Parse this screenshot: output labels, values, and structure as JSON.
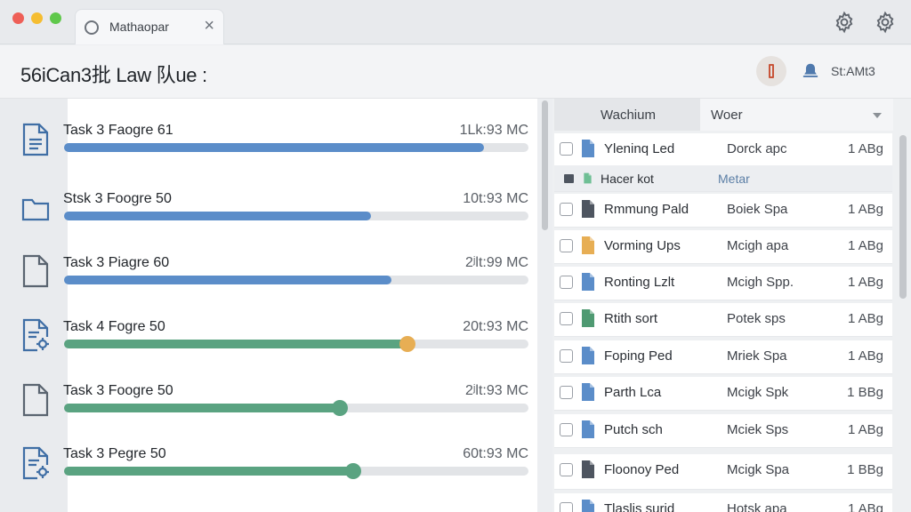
{
  "window": {
    "tab_title": "Mathaopar",
    "tab_close": "×"
  },
  "header": {
    "title": "56iCan3批 Law 队ue :",
    "status": "St:AMt3"
  },
  "tasks": [
    {
      "name": "Task 3 Faogre 61",
      "size": "1Lk:93 MC",
      "progress": 0.905,
      "color": "#5b8dc9",
      "knob": false,
      "icon": "document-icon"
    },
    {
      "name": "Stsk 3 Foogre 50",
      "size": "10t:93 MC",
      "progress": 0.66,
      "color": "#5b8dc9",
      "knob": false,
      "icon": "folder-icon"
    },
    {
      "name": "Task 3 Piаgre 60",
      "size": "2ʲlt:99 MC",
      "progress": 0.705,
      "color": "#5b8dc9",
      "knob": false,
      "icon": "file-icon"
    },
    {
      "name": "Task 4 Fogre 50",
      "size": "20t:93 MC",
      "progress": 0.74,
      "color": "#5aa381",
      "knob": true,
      "knob_color": "#e7ae54",
      "icon": "document-settings-icon"
    },
    {
      "name": "Task 3 Foogre 50",
      "size": "2ʲlt:93 MC",
      "progress": 0.594,
      "color": "#5aa381",
      "knob": true,
      "knob_color": "#5aa381",
      "icon": "file-icon"
    },
    {
      "name": "Task 3 Pegre 50",
      "size": "60t:93 MC",
      "progress": 0.622,
      "color": "#5aa381",
      "knob": true,
      "knob_color": "#5aa381",
      "icon": "document-settings-icon"
    }
  ],
  "files_panel": {
    "tab_a": "Wachium",
    "tab_b": "Woer",
    "rows": [
      {
        "type": "file",
        "name": "Yleninq Led",
        "kind": "Dorck apc",
        "size": "1 ABg",
        "icon_color": "#5b8dc9"
      },
      {
        "type": "group",
        "name": "Hacer kot",
        "kind": "Metar",
        "icon_color": "#6fbf95"
      },
      {
        "type": "file",
        "name": "Rmmung Pald",
        "kind": "Boiek Spa",
        "size": "1 ABg",
        "icon_color": "#4e5560"
      },
      {
        "type": "file",
        "name": "Vorming Ups",
        "kind": "Mcigh apa",
        "size": "1 ABg",
        "icon_color": "#e7ae54"
      },
      {
        "type": "file",
        "name": "Ronting Lzlt",
        "kind": "Mcigh Spp.",
        "size": "1 ABg",
        "icon_color": "#5b8dc9"
      },
      {
        "type": "file",
        "name": "Rtith sort",
        "kind": "Potek sps",
        "size": "1 ABg",
        "icon_color": "#4f9a72"
      },
      {
        "type": "file",
        "name": "Foping Ped",
        "kind": "Mriek Spa",
        "size": "1 ABg",
        "icon_color": "#5b8dc9"
      },
      {
        "type": "file",
        "name": "Parth Lca",
        "kind": "Mcigk Spk",
        "size": "1 BBg",
        "icon_color": "#5b8dc9"
      },
      {
        "type": "file",
        "name": "Putch sch",
        "kind": "Mciek Sps",
        "size": "1 ABg",
        "icon_color": "#5b8dc9"
      },
      {
        "type": "file",
        "name": "Floonoy Ped",
        "kind": "Mcigk Spa",
        "size": "1 BBg",
        "icon_color": "#4e5560"
      },
      {
        "type": "file",
        "name": "Tlaslis surid",
        "kind": "Hotsk apa",
        "size": "1 ABg",
        "icon_color": "#5b8dc9"
      }
    ]
  }
}
